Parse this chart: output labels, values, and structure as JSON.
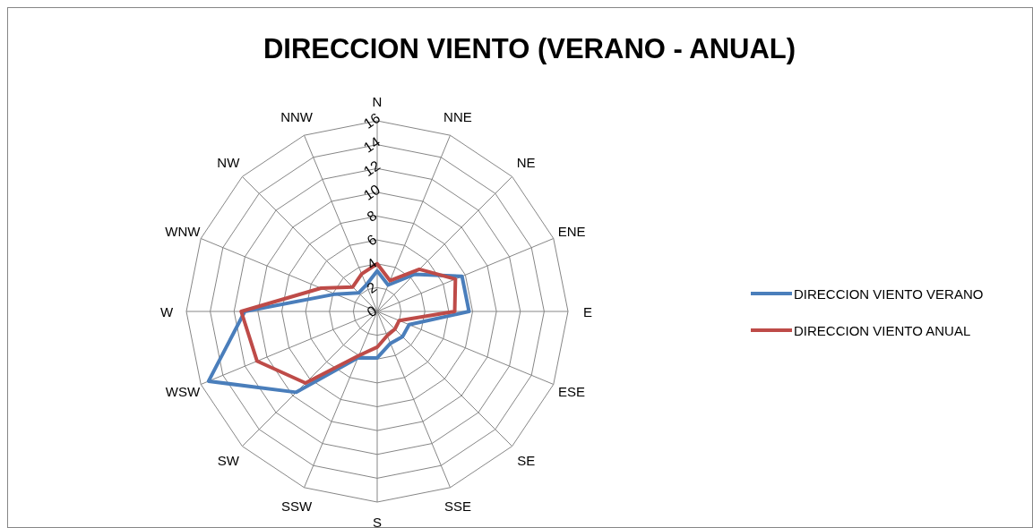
{
  "chart_data": {
    "type": "radar",
    "title": "DIRECCION VIENTO (VERANO - ANUAL)",
    "categories": [
      "N",
      "NNE",
      "NE",
      "ENE",
      "E",
      "ESE",
      "SE",
      "SSE",
      "S",
      "SSW",
      "SW",
      "WSW",
      "W",
      "WNW",
      "NW",
      "NNW"
    ],
    "ylim": [
      0,
      16
    ],
    "yticks": [
      0,
      2,
      4,
      6,
      8,
      10,
      12,
      14,
      16
    ],
    "legend": "right",
    "grid": true,
    "series": [
      {
        "name": "DIRECCION VIENTO VERANO",
        "color": "#4a7ebb",
        "values": [
          3.4,
          2.4,
          4.4,
          7.7,
          7.7,
          2.9,
          3.0,
          2.9,
          3.9,
          4.2,
          9.6,
          15.3,
          11.1,
          3.8,
          2.2,
          2.4
        ]
      },
      {
        "name": "DIRECCION VIENTO ANUAL",
        "color": "#be4b48",
        "values": [
          4.0,
          2.8,
          5.0,
          7.1,
          6.5,
          2.0,
          2.1,
          2.2,
          3.0,
          4.0,
          8.5,
          10.9,
          11.4,
          5.1,
          2.9,
          3.4
        ]
      }
    ]
  }
}
